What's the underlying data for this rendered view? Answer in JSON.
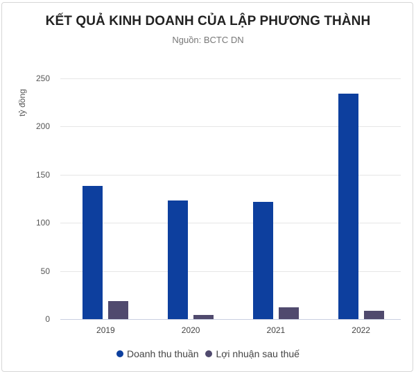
{
  "title": "KẾT QUẢ KINH DOANH CỦA LẬP PHƯƠNG THÀNH",
  "subtitle": "Nguồn: BCTC DN",
  "colors": {
    "revenue": "#0d3f9e",
    "profit": "#504a6e"
  },
  "chart_data": {
    "type": "bar",
    "title": "KẾT QUẢ KINH DOANH CỦA LẬP PHƯƠNG THÀNH",
    "subtitle": "Nguồn: BCTC DN",
    "xlabel": "",
    "ylabel": "tỷ đồng",
    "ylim": [
      0,
      250
    ],
    "yticks": [
      0,
      50,
      100,
      150,
      200,
      250
    ],
    "grid": true,
    "legend_position": "bottom",
    "categories": [
      "2019",
      "2020",
      "2021",
      "2022"
    ],
    "series": [
      {
        "name": "Doanh thu thuần",
        "color": "#0d3f9e",
        "values": [
          138,
          123,
          122,
          234
        ]
      },
      {
        "name": "Lợi nhuận sau thuế",
        "color": "#504a6e",
        "values": [
          19,
          4,
          12,
          9
        ]
      }
    ]
  }
}
